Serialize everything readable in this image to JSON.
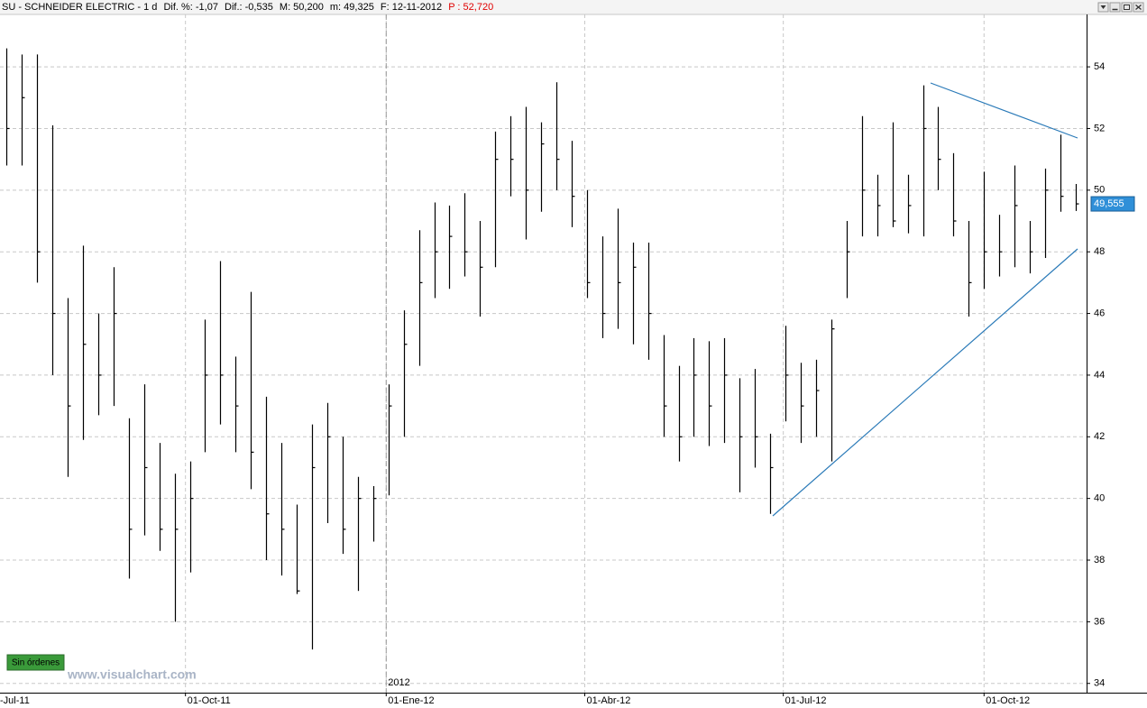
{
  "header": {
    "symbol": "SU - SCHNEIDER ELECTRIC - 1 d",
    "change_pct": "Dif. %: -1,07",
    "change": "Dif.: -0,535",
    "max": "M: 50,200",
    "min": "m: 49,325",
    "date": "F: 12-11-2012",
    "price": "P : 52,720"
  },
  "ui": {
    "orders": "Sin órdenes",
    "watermark": "www.visualchart.com"
  },
  "chart_data": {
    "type": "ohlc",
    "color": "#000000",
    "x": [
      "2011-07-11",
      "2011-07-18",
      "2011-07-25",
      "2011-08-01",
      "2011-08-08",
      "2011-08-15",
      "2011-08-22",
      "2011-08-29",
      "2011-09-05",
      "2011-09-12",
      "2011-09-19",
      "2011-09-26",
      "2011-10-03",
      "2011-10-10",
      "2011-10-17",
      "2011-10-24",
      "2011-10-31",
      "2011-11-07",
      "2011-11-14",
      "2011-11-21",
      "2011-11-28",
      "2011-12-05",
      "2011-12-12",
      "2011-12-19",
      "2011-12-26",
      "2012-01-02",
      "2012-01-09",
      "2012-01-16",
      "2012-01-23",
      "2012-01-30",
      "2012-02-06",
      "2012-02-13",
      "2012-02-20",
      "2012-02-27",
      "2012-03-05",
      "2012-03-12",
      "2012-03-19",
      "2012-03-26",
      "2012-04-02",
      "2012-04-09",
      "2012-04-16",
      "2012-04-23",
      "2012-04-30",
      "2012-05-07",
      "2012-05-14",
      "2012-05-21",
      "2012-05-28",
      "2012-06-04",
      "2012-06-11",
      "2012-06-18",
      "2012-06-25",
      "2012-07-02",
      "2012-07-09",
      "2012-07-16",
      "2012-07-23",
      "2012-07-30",
      "2012-08-06",
      "2012-08-13",
      "2012-08-20",
      "2012-08-27",
      "2012-09-03",
      "2012-09-10",
      "2012-09-17",
      "2012-09-24",
      "2012-10-01",
      "2012-10-08",
      "2012-10-15",
      "2012-10-22",
      "2012-10-29",
      "2012-11-05",
      "2012-11-12"
    ],
    "high": [
      54.6,
      54.4,
      54.4,
      52.1,
      46.5,
      48.2,
      46.0,
      47.5,
      42.6,
      43.7,
      41.8,
      40.8,
      41.2,
      45.8,
      47.7,
      44.6,
      46.7,
      43.3,
      41.8,
      39.8,
      42.4,
      43.1,
      42.0,
      40.7,
      40.4,
      43.7,
      46.1,
      48.7,
      49.6,
      49.5,
      49.9,
      49.0,
      51.9,
      52.4,
      52.7,
      52.2,
      53.5,
      51.6,
      50.0,
      48.5,
      49.4,
      48.3,
      48.3,
      45.3,
      44.3,
      45.2,
      45.1,
      45.2,
      43.9,
      44.2,
      42.1,
      45.6,
      44.4,
      44.5,
      45.8,
      49.0,
      52.4,
      50.5,
      52.2,
      50.5,
      53.4,
      52.7,
      51.2,
      49.0,
      50.6,
      49.2,
      50.8,
      49.0,
      50.7,
      51.8,
      50.2
    ],
    "low": [
      50.8,
      50.8,
      47.0,
      44.0,
      40.7,
      41.9,
      42.7,
      43.0,
      37.4,
      38.8,
      38.3,
      36.0,
      37.6,
      41.5,
      42.4,
      41.5,
      40.3,
      38.0,
      37.5,
      36.9,
      35.1,
      39.2,
      38.2,
      37.0,
      38.6,
      40.1,
      42.0,
      44.3,
      46.5,
      46.8,
      47.2,
      45.9,
      47.5,
      49.8,
      48.4,
      49.3,
      50.0,
      48.8,
      46.5,
      45.2,
      45.5,
      45.0,
      44.5,
      42.0,
      41.2,
      42.0,
      41.7,
      41.8,
      40.2,
      41.0,
      39.5,
      42.5,
      41.8,
      42.0,
      41.2,
      46.5,
      48.5,
      48.5,
      48.8,
      48.6,
      48.5,
      50.0,
      48.5,
      45.9,
      46.8,
      47.2,
      47.5,
      47.3,
      47.8,
      49.3,
      49.325
    ],
    "close": [
      52,
      53,
      48,
      46,
      43,
      45,
      44,
      46,
      39,
      41,
      39,
      39,
      40,
      44,
      44,
      43,
      41.5,
      39.5,
      39,
      37,
      41,
      42,
      39,
      40,
      40,
      43,
      45,
      47,
      48,
      48.5,
      48,
      47.5,
      51,
      51,
      50,
      51.5,
      51,
      49.8,
      47,
      46,
      47,
      47.5,
      46,
      43,
      42,
      44,
      43,
      44,
      42,
      42,
      41,
      44,
      43,
      43.5,
      45.5,
      48,
      50,
      49.5,
      49,
      49.5,
      52,
      51,
      49,
      47,
      48,
      48,
      49.5,
      48,
      50,
      49.8,
      49.555
    ],
    "last_price": {
      "value": 49.555,
      "label": "49,555"
    },
    "xlim": [
      "2011-07-08",
      "2012-11-17"
    ],
    "xticks": [
      {
        "value": "2011-07-01",
        "label": "-Jul-11"
      },
      {
        "value": "2011-10-01",
        "label": "01-Oct-11"
      },
      {
        "value": "2012-01-01",
        "label": "01-Ene-12"
      },
      {
        "value": "2012-04-01",
        "label": "01-Abr-12"
      },
      {
        "value": "2012-07-01",
        "label": "01-Jul-12"
      },
      {
        "value": "2012-10-01",
        "label": "01-Oct-12"
      }
    ],
    "year_marker": {
      "value": "2012-01-01",
      "label": "2012"
    },
    "ylim": [
      33.7,
      55.7
    ],
    "yticks": [
      34,
      36,
      38,
      40,
      42,
      44,
      46,
      48,
      50,
      52,
      54
    ],
    "grid": true
  }
}
